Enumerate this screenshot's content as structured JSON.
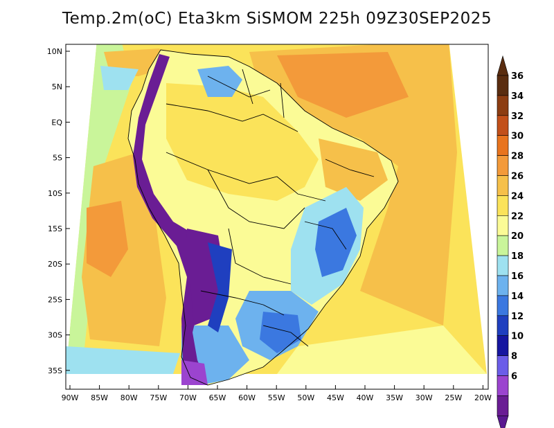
{
  "title": "Temp.2m(oC) Eta3km SiSMOM 225h 09Z30SEP2025",
  "map": {
    "lat_labels": [
      "10N",
      "5N",
      "EQ",
      "5S",
      "10S",
      "15S",
      "20S",
      "25S",
      "30S",
      "35S"
    ],
    "lon_labels": [
      "90W",
      "85W",
      "80W",
      "75W",
      "70W",
      "65W",
      "60W",
      "55W",
      "50W",
      "45W",
      "40W",
      "35W",
      "30W",
      "25W",
      "20W"
    ]
  },
  "colorbar": {
    "labels": [
      "36",
      "34",
      "32",
      "30",
      "28",
      "26",
      "24",
      "22",
      "20",
      "18",
      "16",
      "14",
      "12",
      "10",
      "8",
      "6"
    ],
    "colors": [
      "#5a2d10",
      "#8c3d12",
      "#c2501a",
      "#e8741e",
      "#f39a3a",
      "#f6c04a",
      "#fbe35a",
      "#fbfb96",
      "#c9f59a",
      "#9ee1f0",
      "#6db2ee",
      "#3b78e0",
      "#1f3fbf",
      "#1616a0",
      "#6b5de8",
      "#9b44cf",
      "#6a1d94"
    ],
    "top_arrow_color": "#5a2d10",
    "bottom_arrow_color": "#5a1890"
  },
  "colors": {
    "ocean_warm": "#f6c04a",
    "ocean_hot": "#f39a3a",
    "andes_cold": "#6a1d94",
    "border": "#000000"
  }
}
